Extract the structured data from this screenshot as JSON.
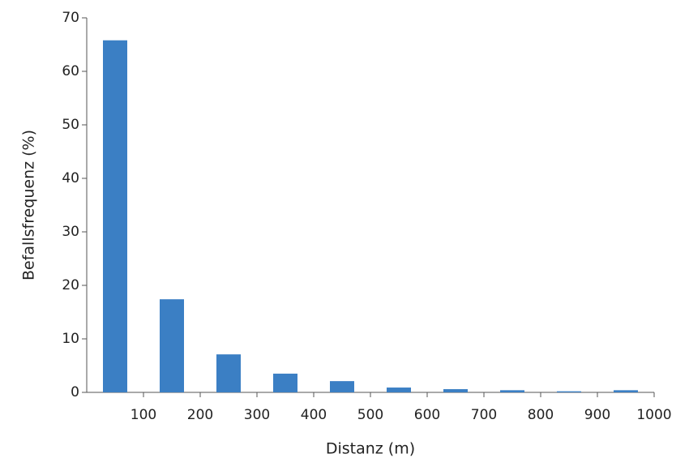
{
  "chart_data": {
    "type": "bar",
    "x": [
      50,
      150,
      250,
      350,
      450,
      550,
      650,
      750,
      850,
      950
    ],
    "values": [
      65.8,
      17.4,
      7.1,
      3.5,
      2.1,
      0.9,
      0.6,
      0.4,
      0.2,
      0.4
    ],
    "color": "#3b7fc4",
    "xlabel": "Distanz (m)",
    "ylabel": "Befallsfrequenz (%)",
    "xlim": [
      0,
      1000
    ],
    "xticks": [
      100,
      200,
      300,
      400,
      500,
      600,
      700,
      800,
      900,
      1000
    ],
    "ylim": [
      0,
      70
    ],
    "yticks": [
      0,
      10,
      20,
      30,
      40,
      50,
      60,
      70
    ],
    "grid": false
  }
}
